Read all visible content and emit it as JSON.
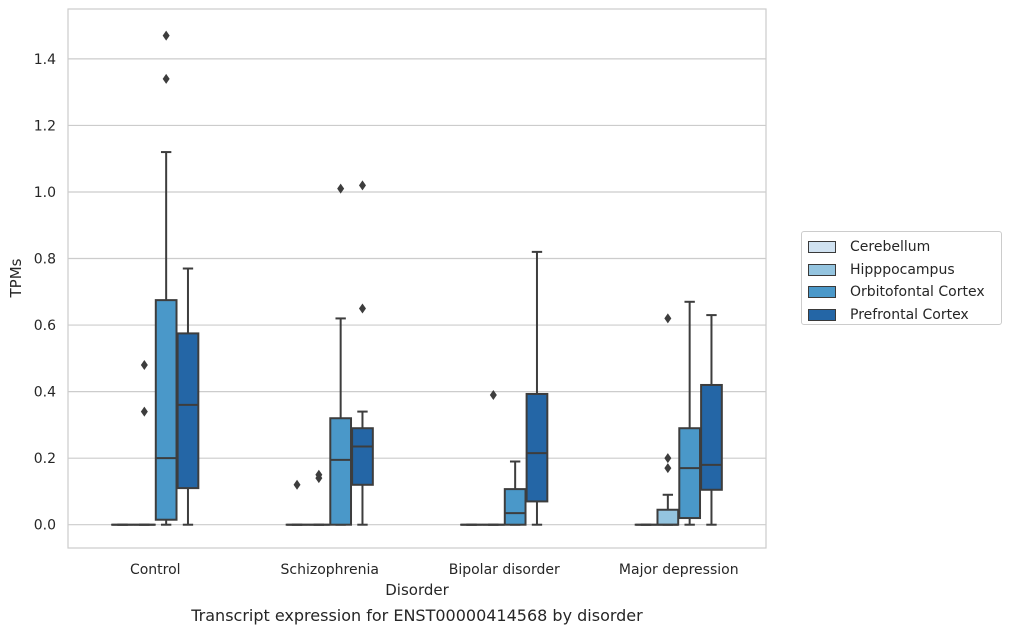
{
  "chart_data": {
    "type": "box",
    "title": "",
    "caption": "Transcript expression for ENST00000414568 by disorder",
    "xlabel": "Disorder",
    "ylabel": "TPMs",
    "ylim": [
      -0.07,
      1.55
    ],
    "yticks": [
      "0.0",
      "0.2",
      "0.4",
      "0.6",
      "0.8",
      "1.0",
      "1.2",
      "1.4"
    ],
    "ytick_values": [
      0,
      0.2,
      0.4,
      0.6,
      0.8,
      1.0,
      1.2,
      1.4
    ],
    "grid": true,
    "legend_position": "right",
    "categories": [
      "Control",
      "Schizophrenia",
      "Bipolar disorder",
      "Major depression"
    ],
    "series": [
      {
        "name": "Cerebellum",
        "color": "#d0e2f1",
        "boxes": [
          {
            "whislo": 0,
            "q1": 0,
            "med": 0,
            "q3": 0,
            "whishi": 0,
            "fliers": []
          },
          {
            "whislo": 0,
            "q1": 0,
            "med": 0,
            "q3": 0,
            "whishi": 0,
            "fliers": [
              0.12
            ]
          },
          {
            "whislo": 0,
            "q1": 0,
            "med": 0,
            "q3": 0,
            "whishi": 0,
            "fliers": []
          },
          {
            "whislo": 0,
            "q1": 0,
            "med": 0,
            "q3": 0,
            "whishi": 0,
            "fliers": []
          }
        ]
      },
      {
        "name": "Hipppocampus",
        "color": "#94c4df",
        "boxes": [
          {
            "whislo": 0,
            "q1": 0,
            "med": 0,
            "q3": 0,
            "whishi": 0,
            "fliers": [
              0.34,
              0.48
            ]
          },
          {
            "whislo": 0,
            "q1": 0,
            "med": 0,
            "q3": 0,
            "whishi": 0,
            "fliers": [
              0.14,
              0.15
            ]
          },
          {
            "whislo": 0,
            "q1": 0,
            "med": 0,
            "q3": 0,
            "whishi": 0,
            "fliers": [
              0.39
            ]
          },
          {
            "whislo": 0,
            "q1": 0,
            "med": 0,
            "q3": 0.045,
            "whishi": 0.09,
            "fliers": [
              0.17,
              0.2,
              0.62
            ]
          }
        ]
      },
      {
        "name": "Orbitofontal Cortex",
        "color": "#4a98c9",
        "boxes": [
          {
            "whislo": 0,
            "q1": 0.015,
            "med": 0.2,
            "q3": 0.675,
            "whishi": 1.12,
            "fliers": [
              1.34,
              1.47
            ]
          },
          {
            "whislo": 0,
            "q1": 0,
            "med": 0.195,
            "q3": 0.32,
            "whishi": 0.62,
            "fliers": [
              1.01
            ]
          },
          {
            "whislo": 0,
            "q1": 0,
            "med": 0.035,
            "q3": 0.107,
            "whishi": 0.19,
            "fliers": []
          },
          {
            "whislo": 0,
            "q1": 0.02,
            "med": 0.17,
            "q3": 0.29,
            "whishi": 0.67,
            "fliers": []
          }
        ]
      },
      {
        "name": "Prefrontal Cortex",
        "color": "#2466a6",
        "boxes": [
          {
            "whislo": 0,
            "q1": 0.11,
            "med": 0.36,
            "q3": 0.575,
            "whishi": 0.77,
            "fliers": []
          },
          {
            "whislo": 0,
            "q1": 0.12,
            "med": 0.235,
            "q3": 0.29,
            "whishi": 0.34,
            "fliers": [
              0.65,
              1.02
            ]
          },
          {
            "whislo": 0,
            "q1": 0.07,
            "med": 0.215,
            "q3": 0.393,
            "whishi": 0.82,
            "fliers": []
          },
          {
            "whislo": 0,
            "q1": 0.105,
            "med": 0.18,
            "q3": 0.42,
            "whishi": 0.63,
            "fliers": []
          }
        ]
      }
    ]
  }
}
